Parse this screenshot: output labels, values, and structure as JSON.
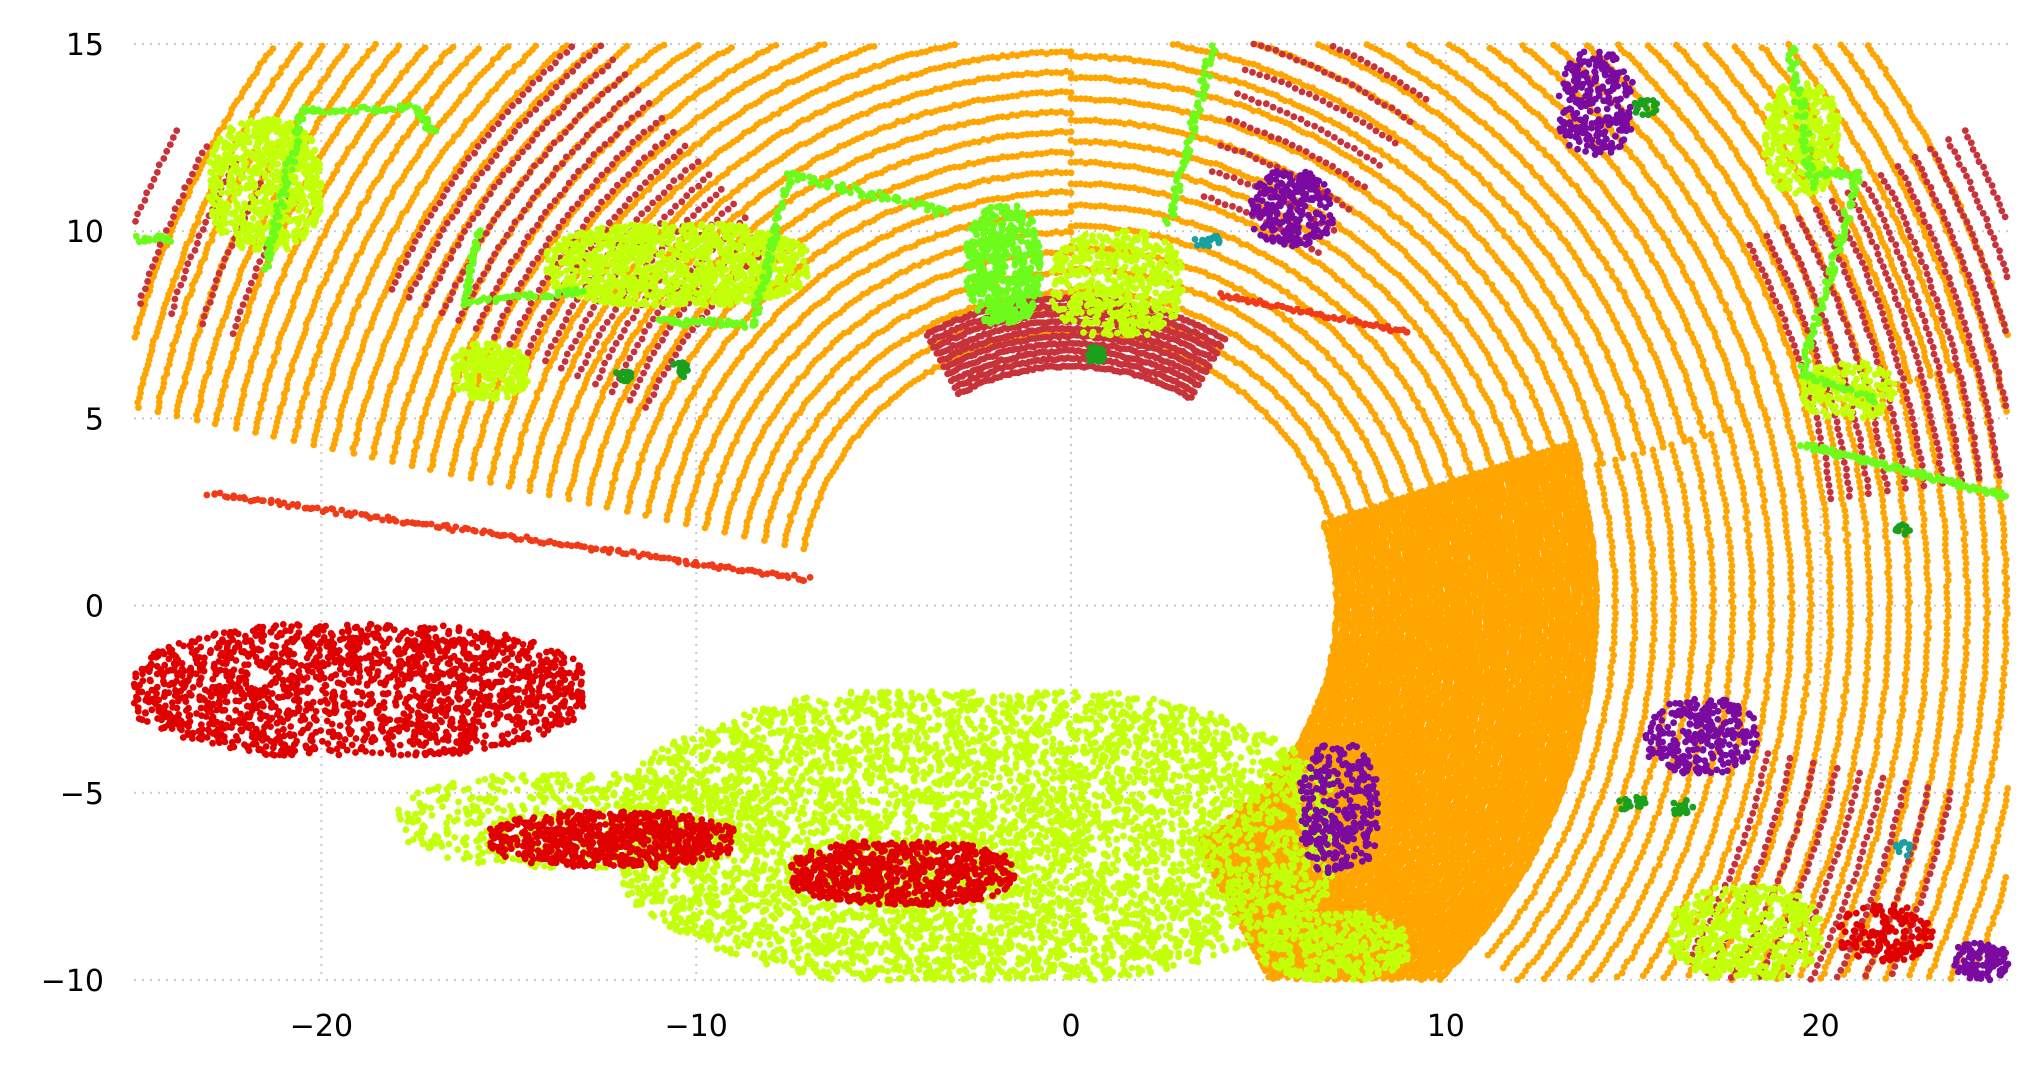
{
  "chart_data": {
    "type": "scatter",
    "title": "",
    "xlabel": "",
    "ylabel": "",
    "xlim": [
      -25,
      25
    ],
    "ylim": [
      -10,
      15
    ],
    "grid": true,
    "legend": "none",
    "x_ticks": [
      -20,
      -10,
      0,
      10,
      20
    ],
    "y_ticks": [
      -10,
      -5,
      0,
      5,
      10,
      15
    ],
    "x_tick_labels": [
      "−20",
      "−10",
      "0",
      "10",
      "20"
    ],
    "y_tick_labels": [
      "−10",
      "−5",
      "0",
      "5",
      "10",
      "15"
    ],
    "palette": {
      "road": "#ffa500",
      "sidewalk": "#c8323a",
      "lane_marking": "#f03a18",
      "vegetation": "#c4ff0a",
      "building": "#6dfb1c",
      "car": "#e00000",
      "vehicle_small": "#7a0aa0",
      "pole": "#1aa01a",
      "other": "#1aa0a0"
    },
    "regions": [
      {
        "class": "road",
        "kind": "arcs",
        "cx": 0,
        "cy": 0,
        "r0": 7.3,
        "r1": 26,
        "a0": 15,
        "a1": 90,
        "rings": 34,
        "step": 0.13
      },
      {
        "class": "road",
        "kind": "arcs",
        "cx": 0,
        "cy": 0,
        "r0": 7.3,
        "r1": 26,
        "a0": 90,
        "a1": 168,
        "rings": 36,
        "step": 0.13
      },
      {
        "class": "road",
        "kind": "arcs",
        "cx": 0,
        "cy": 0,
        "r0": 7.1,
        "r1": 14,
        "a0": -62,
        "a1": 18,
        "rings": 48,
        "step": 0.09
      },
      {
        "class": "road",
        "kind": "arcs",
        "cx": 0,
        "cy": 0,
        "r0": 14,
        "r1": 26,
        "a0": -40,
        "a1": 15,
        "rings": 24,
        "step": 0.16
      },
      {
        "class": "sidewalk",
        "kind": "arcs",
        "cx": 0,
        "cy": 0,
        "r0": 12.5,
        "r1": 20,
        "a0": 130,
        "a1": 155,
        "rings": 16,
        "step": 0.2
      },
      {
        "class": "sidewalk",
        "kind": "arcs",
        "cx": 0,
        "cy": 0,
        "r0": 6.4,
        "r1": 8.2,
        "a0": 60,
        "a1": 118,
        "rings": 10,
        "step": 0.08
      },
      {
        "class": "sidewalk",
        "kind": "arcs",
        "cx": 0,
        "cy": 0,
        "r0": 20.5,
        "r1": 27,
        "a0": 8,
        "a1": 28,
        "rings": 14,
        "step": 0.18
      },
      {
        "class": "sidewalk",
        "kind": "arcs",
        "cx": 0,
        "cy": 0,
        "r0": 19,
        "r1": 24,
        "a0": -30,
        "a1": -12,
        "rings": 9,
        "step": 0.2
      },
      {
        "class": "sidewalk",
        "kind": "arcs",
        "cx": 0,
        "cy": 0,
        "r0": 11.5,
        "r1": 16.5,
        "a0": 55,
        "a1": 72,
        "rings": 8,
        "step": 0.2
      },
      {
        "class": "sidewalk",
        "kind": "arcs",
        "cx": 0,
        "cy": 0,
        "r0": 23.5,
        "r1": 27,
        "a0": 152,
        "a1": 162,
        "rings": 5,
        "step": 0.2
      },
      {
        "class": "lane_marking",
        "kind": "line",
        "x1": -23,
        "y1": 3,
        "x2": -7,
        "y2": 0.7,
        "n": 160,
        "w": 0.12
      },
      {
        "class": "lane_marking",
        "kind": "line",
        "x1": 4,
        "y1": 8.3,
        "x2": 9,
        "y2": 7.3,
        "n": 60,
        "w": 0.1
      },
      {
        "class": "vegetation",
        "kind": "blob",
        "x0": -12,
        "x1": 7,
        "y0": -10,
        "y1": -2.3,
        "n": 5200
      },
      {
        "class": "vegetation",
        "kind": "blob",
        "x0": -18,
        "x1": -8,
        "y0": -7,
        "y1": -4.5,
        "n": 600
      },
      {
        "class": "vegetation",
        "kind": "blob",
        "x0": 5,
        "x1": 9,
        "y0": -10,
        "y1": -8.2,
        "n": 400
      },
      {
        "class": "vegetation",
        "kind": "blob",
        "x0": -14,
        "x1": -7,
        "y0": 8,
        "y1": 10.2,
        "n": 1100
      },
      {
        "class": "vegetation",
        "kind": "blob",
        "x0": -23,
        "x1": -20,
        "y0": 9.5,
        "y1": 13,
        "n": 700
      },
      {
        "class": "vegetation",
        "kind": "blob",
        "x0": -16.5,
        "x1": -14.5,
        "y0": 5.5,
        "y1": 7,
        "n": 250
      },
      {
        "class": "vegetation",
        "kind": "blob",
        "x0": -0.5,
        "x1": 3,
        "y0": 7.2,
        "y1": 10,
        "n": 500
      },
      {
        "class": "vegetation",
        "kind": "blob",
        "x0": 16,
        "x1": 20,
        "y0": -10,
        "y1": -7.5,
        "n": 500
      },
      {
        "class": "vegetation",
        "kind": "blob",
        "x0": 18.5,
        "x1": 20.5,
        "y0": 11,
        "y1": 14,
        "n": 350
      },
      {
        "class": "vegetation",
        "kind": "blob",
        "x0": 19.5,
        "x1": 22,
        "y0": 5,
        "y1": 6.5,
        "n": 200
      },
      {
        "class": "car",
        "kind": "blob",
        "x0": -25,
        "x1": -13,
        "y0": -4,
        "y1": -0.5,
        "n": 1700
      },
      {
        "class": "car",
        "kind": "blob",
        "x0": -15.5,
        "x1": -9,
        "y0": -7,
        "y1": -5.5,
        "n": 700
      },
      {
        "class": "car",
        "kind": "blob",
        "x0": -7.5,
        "x1": -1.5,
        "y0": -8,
        "y1": -6.3,
        "n": 700
      },
      {
        "class": "car",
        "kind": "blob",
        "x0": 20.5,
        "x1": 23,
        "y0": -9.5,
        "y1": -8,
        "n": 160
      },
      {
        "class": "building",
        "kind": "line",
        "x1": -20.5,
        "y1": 13.2,
        "x2": -17.5,
        "y2": 13.3,
        "n": 40,
        "w": 0.15
      },
      {
        "class": "building",
        "kind": "line",
        "x1": -17.5,
        "y1": 13.3,
        "x2": -17,
        "y2": 12.6,
        "n": 20,
        "w": 0.15
      },
      {
        "class": "building",
        "kind": "line",
        "x1": -20.5,
        "y1": 13.2,
        "x2": -21.5,
        "y2": 9,
        "n": 60,
        "w": 0.2
      },
      {
        "class": "building",
        "kind": "line",
        "x1": -25,
        "y1": 9.8,
        "x2": -24,
        "y2": 9.8,
        "n": 20,
        "w": 0.2
      },
      {
        "class": "building",
        "kind": "line",
        "x1": -15.8,
        "y1": 10,
        "x2": -16.2,
        "y2": 8.1,
        "n": 40,
        "w": 0.15
      },
      {
        "class": "building",
        "kind": "line",
        "x1": -16.2,
        "y1": 8.1,
        "x2": -13,
        "y2": 8.4,
        "n": 40,
        "w": 0.15
      },
      {
        "class": "building",
        "kind": "line",
        "x1": -11,
        "y1": 7.6,
        "x2": -8.5,
        "y2": 7.5,
        "n": 40,
        "w": 0.18
      },
      {
        "class": "building",
        "kind": "line",
        "x1": -8.5,
        "y1": 7.5,
        "x2": -7.5,
        "y2": 11.5,
        "n": 60,
        "w": 0.2
      },
      {
        "class": "building",
        "kind": "line",
        "x1": -7.5,
        "y1": 11.5,
        "x2": -3.3,
        "y2": 10.5,
        "n": 60,
        "w": 0.22
      },
      {
        "class": "building",
        "kind": "blob",
        "x0": -2.8,
        "x1": -0.8,
        "y0": 7.5,
        "y1": 10.7,
        "n": 500
      },
      {
        "class": "building",
        "kind": "line",
        "x1": 2.6,
        "y1": 10.2,
        "x2": 3.8,
        "y2": 15,
        "n": 70,
        "w": 0.2
      },
      {
        "class": "building",
        "kind": "line",
        "x1": 19.2,
        "y1": 15,
        "x2": 19.8,
        "y2": 11.2,
        "n": 60,
        "w": 0.25
      },
      {
        "class": "building",
        "kind": "line",
        "x1": 19.8,
        "y1": 11.6,
        "x2": 21,
        "y2": 11.5,
        "n": 25,
        "w": 0.2
      },
      {
        "class": "building",
        "kind": "line",
        "x1": 21,
        "y1": 11.5,
        "x2": 19.5,
        "y2": 6.2,
        "n": 80,
        "w": 0.2
      },
      {
        "class": "building",
        "kind": "line",
        "x1": 19.5,
        "y1": 6.2,
        "x2": 21.5,
        "y2": 5.5,
        "n": 30,
        "w": 0.15
      },
      {
        "class": "building",
        "kind": "line",
        "x1": 19.5,
        "y1": 4.3,
        "x2": 25,
        "y2": 2.9,
        "n": 110,
        "w": 0.15
      },
      {
        "class": "vehicle_small",
        "kind": "blob",
        "x0": 4.8,
        "x1": 7,
        "y0": 9.6,
        "y1": 11.6,
        "n": 260
      },
      {
        "class": "vehicle_small",
        "kind": "blob",
        "x0": 6.1,
        "x1": 8.2,
        "y0": -7.2,
        "y1": -3.7,
        "n": 300
      },
      {
        "class": "vehicle_small",
        "kind": "blob",
        "x0": 13,
        "x1": 15,
        "y0": 12,
        "y1": 14.8,
        "n": 260
      },
      {
        "class": "vehicle_small",
        "kind": "blob",
        "x0": 15.3,
        "x1": 18.3,
        "y0": -4.5,
        "y1": -2.5,
        "n": 260
      },
      {
        "class": "vehicle_small",
        "kind": "blob",
        "x0": 23.5,
        "x1": 25,
        "y0": -10,
        "y1": -9,
        "n": 100
      },
      {
        "class": "pole",
        "kind": "blob",
        "x0": 0.4,
        "x1": 0.9,
        "y0": 6.5,
        "y1": 6.9,
        "n": 40
      },
      {
        "class": "pole",
        "kind": "blob",
        "x0": -12.2,
        "x1": -11.7,
        "y0": 6,
        "y1": 6.3,
        "n": 20
      },
      {
        "class": "pole",
        "kind": "blob",
        "x0": -10.7,
        "x1": -10.1,
        "y0": 6.1,
        "y1": 6.5,
        "n": 20
      },
      {
        "class": "pole",
        "kind": "blob",
        "x0": 15,
        "x1": 15.8,
        "y0": 13.1,
        "y1": 13.5,
        "n": 20
      },
      {
        "class": "pole",
        "kind": "blob",
        "x0": 14.6,
        "x1": 15.4,
        "y0": -5.5,
        "y1": -5.1,
        "n": 20
      },
      {
        "class": "pole",
        "kind": "blob",
        "x0": 16,
        "x1": 16.6,
        "y0": -5.6,
        "y1": -5.2,
        "n": 15
      },
      {
        "class": "pole",
        "kind": "blob",
        "x0": 22,
        "x1": 22.4,
        "y0": 1.9,
        "y1": 2.2,
        "n": 12
      },
      {
        "class": "other",
        "kind": "blob",
        "x0": 3.2,
        "x1": 4,
        "y0": 9.6,
        "y1": 9.9,
        "n": 20
      },
      {
        "class": "other",
        "kind": "blob",
        "x0": 22,
        "x1": 22.4,
        "y0": -6.7,
        "y1": -6.3,
        "n": 10
      }
    ]
  }
}
